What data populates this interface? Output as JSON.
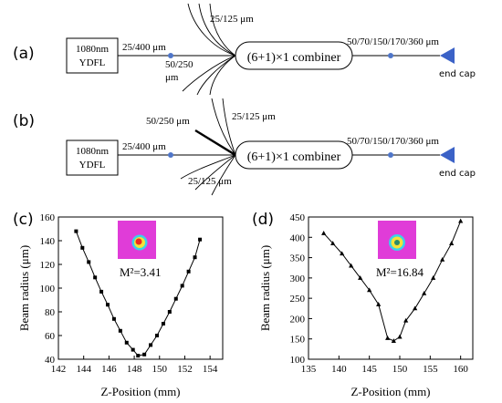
{
  "diagram_a": {
    "panel_label": "(a)",
    "laser": [
      "1080nm",
      "YDFL"
    ],
    "input_fiber": "25/400 μm",
    "pump_fiber": [
      "50/250",
      "μm"
    ],
    "signal_fibers": "25/125 μm",
    "combiner": "(6+1)×1 combiner",
    "output_fiber": "50/70/150/170/360 μm",
    "end_cap": "end cap"
  },
  "diagram_b": {
    "panel_label": "(b)",
    "laser": [
      "1080nm",
      "YDFL"
    ],
    "input_fiber": "25/400 μm",
    "pump_fiber": "50/250 μm",
    "signal_fibers_upper": "25/125 μm",
    "signal_fibers_lower": "25/125 μm",
    "combiner": "(6+1)×1 combiner",
    "output_fiber": "50/70/150/170/360 μm",
    "end_cap": "end cap"
  },
  "colors": {
    "splice_point": "#4f76c9",
    "end_cap": "#3b62c7",
    "beam_background": "#e03cd8"
  },
  "chart_data": [
    {
      "panel_label": "(c)",
      "type": "line",
      "xlabel": "Z-Position (mm)",
      "ylabel": "Beam radius (μm)",
      "xlim": [
        142,
        155
      ],
      "ylim": [
        40,
        160
      ],
      "xticks": [
        142,
        144,
        146,
        148,
        150,
        152,
        154
      ],
      "yticks": [
        40,
        60,
        80,
        100,
        120,
        140,
        160
      ],
      "annotation": "M²=3.41",
      "marker": "square",
      "x": [
        143.4,
        143.9,
        144.4,
        144.9,
        145.4,
        145.9,
        146.4,
        146.9,
        147.4,
        147.9,
        148.3,
        148.8,
        149.3,
        149.8,
        150.3,
        150.8,
        151.3,
        151.8,
        152.3,
        152.8,
        153.2
      ],
      "y": [
        148,
        134,
        122,
        109,
        97,
        86,
        74,
        64,
        54,
        48,
        43,
        44,
        52,
        60,
        70,
        80,
        91,
        102,
        114,
        126,
        141
      ]
    },
    {
      "panel_label": "(d)",
      "type": "line",
      "xlabel": "Z-Position (mm)",
      "ylabel": "Beam radius (μm)",
      "xlim": [
        135,
        162
      ],
      "ylim": [
        100,
        450
      ],
      "xticks": [
        135,
        140,
        145,
        150,
        155,
        160
      ],
      "yticks": [
        100,
        150,
        200,
        250,
        300,
        350,
        400,
        450
      ],
      "annotation": "M²=16.84",
      "marker": "triangle",
      "x": [
        137.5,
        139,
        140.5,
        142,
        143.5,
        145,
        146.5,
        148,
        149,
        150,
        151,
        152.5,
        154,
        155.5,
        157,
        158.5,
        160
      ],
      "y": [
        410,
        385,
        360,
        330,
        300,
        270,
        235,
        152,
        145,
        155,
        195,
        225,
        262,
        300,
        345,
        385,
        440
      ]
    }
  ]
}
